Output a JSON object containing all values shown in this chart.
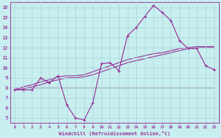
{
  "xlabel": "Windchill (Refroidissement éolien,°C)",
  "x_values": [
    0,
    1,
    2,
    3,
    4,
    5,
    6,
    7,
    8,
    9,
    10,
    11,
    12,
    13,
    14,
    15,
    16,
    17,
    18,
    19,
    20,
    21,
    22,
    23
  ],
  "line_main": [
    7.8,
    7.8,
    7.8,
    9.0,
    8.5,
    9.2,
    6.3,
    5.0,
    4.8,
    6.5,
    10.4,
    10.5,
    9.7,
    13.2,
    14.0,
    15.1,
    16.2,
    15.5,
    14.7,
    12.7,
    11.9,
    11.9,
    10.2,
    9.8
  ],
  "line_flat": [
    8.0,
    8.0,
    8.0,
    8.0,
    8.0,
    8.0,
    8.0,
    8.0,
    8.0,
    8.0,
    8.0,
    8.0,
    8.0,
    8.0,
    8.0,
    8.0,
    8.0,
    8.0,
    8.0,
    8.0,
    8.0,
    8.0,
    8.0,
    8.0
  ],
  "line_slope1": [
    7.8,
    7.9,
    8.1,
    8.3,
    8.6,
    8.8,
    9.0,
    9.0,
    9.1,
    9.3,
    9.6,
    9.9,
    10.2,
    10.5,
    10.7,
    10.9,
    11.1,
    11.3,
    11.5,
    11.7,
    11.9,
    12.0,
    12.0,
    12.0
  ],
  "line_slope2": [
    7.8,
    8.1,
    8.3,
    8.6,
    8.8,
    9.1,
    9.2,
    9.2,
    9.3,
    9.6,
    9.9,
    10.2,
    10.5,
    10.8,
    11.0,
    11.2,
    11.4,
    11.5,
    11.7,
    11.9,
    12.0,
    12.1,
    12.1,
    12.1
  ],
  "bg_color": "#c8eef0",
  "line_color": "#993399",
  "grid_color": "#a8d8d8",
  "ylim": [
    4.5,
    16.5
  ],
  "xlim": [
    -0.5,
    23.5
  ],
  "yticks": [
    5,
    6,
    7,
    8,
    9,
    10,
    11,
    12,
    13,
    14,
    15,
    16
  ],
  "xticks": [
    0,
    1,
    2,
    3,
    4,
    5,
    6,
    7,
    8,
    9,
    10,
    11,
    12,
    13,
    14,
    15,
    16,
    17,
    18,
    19,
    20,
    21,
    22,
    23
  ]
}
